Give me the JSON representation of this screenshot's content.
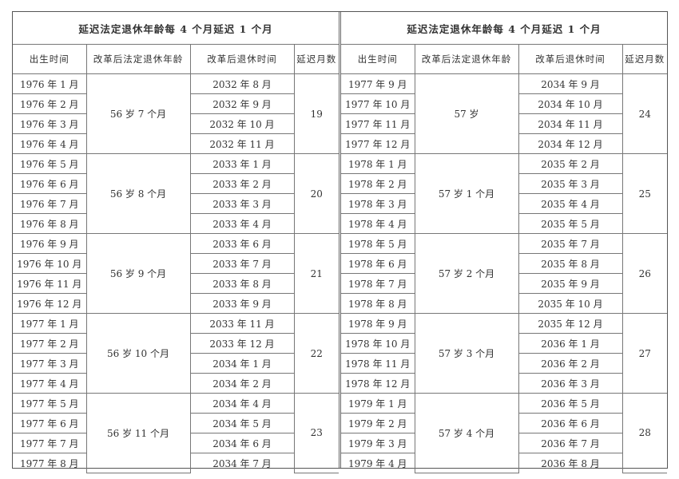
{
  "tables": [
    {
      "title": "延迟法定退休年龄每 4 个月延迟 1 个月",
      "headers": [
        "出生时间",
        "改革后法定退休年龄",
        "改革后退休时间",
        "延迟月数"
      ],
      "groups": [
        {
          "age": "56 岁 7 个月",
          "months": "19",
          "rows": [
            [
              "1976 年 1 月",
              "2032 年 8 月"
            ],
            [
              "1976 年 2 月",
              "2032 年 9 月"
            ],
            [
              "1976 年 3 月",
              "2032 年 10 月"
            ],
            [
              "1976 年 4 月",
              "2032 年 11 月"
            ]
          ]
        },
        {
          "age": "56 岁 8 个月",
          "months": "20",
          "rows": [
            [
              "1976 年 5 月",
              "2033 年 1 月"
            ],
            [
              "1976 年 6 月",
              "2033 年 2 月"
            ],
            [
              "1976 年 7 月",
              "2033 年 3 月"
            ],
            [
              "1976 年 8 月",
              "2033 年 4 月"
            ]
          ]
        },
        {
          "age": "56 岁 9 个月",
          "months": "21",
          "rows": [
            [
              "1976 年 9 月",
              "2033 年 6 月"
            ],
            [
              "1976 年 10 月",
              "2033 年 7 月"
            ],
            [
              "1976 年 11 月",
              "2033 年 8 月"
            ],
            [
              "1976 年 12 月",
              "2033 年 9 月"
            ]
          ]
        },
        {
          "age": "56 岁 10 个月",
          "months": "22",
          "rows": [
            [
              "1977 年 1 月",
              "2033 年 11 月"
            ],
            [
              "1977 年 2 月",
              "2033 年 12 月"
            ],
            [
              "1977 年 3 月",
              "2034 年 1 月"
            ],
            [
              "1977 年 4 月",
              "2034 年 2 月"
            ]
          ]
        },
        {
          "age": "56 岁 11 个月",
          "months": "23",
          "rows": [
            [
              "1977 年 5 月",
              "2034 年 4 月"
            ],
            [
              "1977 年 6 月",
              "2034 年 5 月"
            ],
            [
              "1977 年 7 月",
              "2034 年 6 月"
            ],
            [
              "1977 年 8 月",
              "2034 年 7 月"
            ]
          ]
        }
      ]
    },
    {
      "title": "延迟法定退休年龄每 4 个月延迟 1 个月",
      "headers": [
        "出生时间",
        "改革后法定退休年龄",
        "改革后退休时间",
        "延迟月数"
      ],
      "groups": [
        {
          "age": "57 岁",
          "months": "24",
          "rows": [
            [
              "1977 年 9 月",
              "2034 年 9 月"
            ],
            [
              "1977 年 10 月",
              "2034 年 10 月"
            ],
            [
              "1977 年 11 月",
              "2034 年 11 月"
            ],
            [
              "1977 年 12 月",
              "2034 年 12 月"
            ]
          ]
        },
        {
          "age": "57 岁 1 个月",
          "months": "25",
          "rows": [
            [
              "1978 年 1 月",
              "2035 年 2 月"
            ],
            [
              "1978 年 2 月",
              "2035 年 3 月"
            ],
            [
              "1978 年 3 月",
              "2035 年 4 月"
            ],
            [
              "1978 年 4 月",
              "2035 年 5 月"
            ]
          ]
        },
        {
          "age": "57 岁 2 个月",
          "months": "26",
          "rows": [
            [
              "1978 年 5 月",
              "2035 年 7 月"
            ],
            [
              "1978 年 6 月",
              "2035 年 8 月"
            ],
            [
              "1978 年 7 月",
              "2035 年 9 月"
            ],
            [
              "1978 年 8 月",
              "2035 年 10 月"
            ]
          ]
        },
        {
          "age": "57 岁 3 个月",
          "months": "27",
          "rows": [
            [
              "1978 年 9 月",
              "2035 年 12 月"
            ],
            [
              "1978 年 10 月",
              "2036 年 1 月"
            ],
            [
              "1978 年 11 月",
              "2036 年 2 月"
            ],
            [
              "1978 年 12 月",
              "2036 年 3 月"
            ]
          ]
        },
        {
          "age": "57 岁 4 个月",
          "months": "28",
          "rows": [
            [
              "1979 年 1 月",
              "2036 年 5 月"
            ],
            [
              "1979 年 2 月",
              "2036 年 6 月"
            ],
            [
              "1979 年 3 月",
              "2036 年 7 月"
            ],
            [
              "1979 年 4 月",
              "2036 年 8 月"
            ]
          ]
        }
      ]
    }
  ]
}
